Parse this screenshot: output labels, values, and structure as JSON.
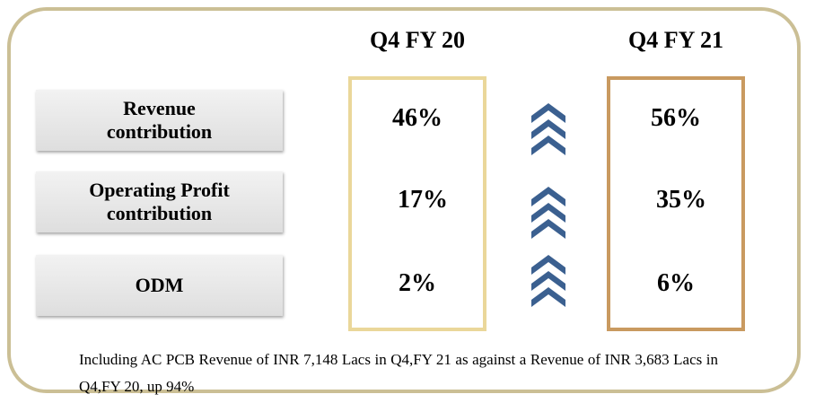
{
  "columns": [
    "Q4 FY 20",
    "Q4 FY 21"
  ],
  "rows": [
    {
      "label": [
        "Revenue",
        "contribution"
      ],
      "values": [
        "46%",
        "56%"
      ]
    },
    {
      "label": [
        "Operating Profit",
        "contribution"
      ],
      "values": [
        "17%",
        "35%"
      ]
    },
    {
      "label": [
        "ODM"
      ],
      "values": [
        "2%",
        "6%"
      ]
    }
  ],
  "note": "Including AC PCB Revenue of INR 7,148 Lacs in Q4,FY 21 as against a Revenue of INR 3,683 Lacs  in Q4,FY 20, up 94%"
}
